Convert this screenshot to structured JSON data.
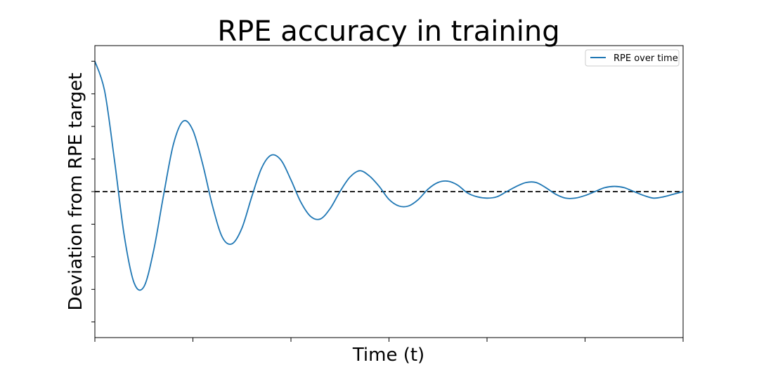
{
  "chart_data": {
    "type": "line",
    "title": "RPE accuracy in training",
    "xlabel": "Time (t)",
    "ylabel": "Deviation from RPE target",
    "xlim": [
      0,
      6
    ],
    "ylim": [
      -1.12,
      1.12
    ],
    "x_ticks": [
      0,
      1,
      2,
      3,
      4,
      5,
      6
    ],
    "y_ticks": [
      -1.0,
      -0.75,
      -0.5,
      -0.25,
      0.0,
      0.25,
      0.5,
      0.75,
      1.0
    ],
    "tick_labels_visible": false,
    "grid": false,
    "legend": {
      "placement": "top-right"
    },
    "series": [
      {
        "name": "RPE over time",
        "color": "#1f77b4",
        "x": [
          0,
          0.1,
          0.2,
          0.3,
          0.4,
          0.5,
          0.6,
          0.7,
          0.8,
          0.9,
          1.0,
          1.1,
          1.2,
          1.3,
          1.4,
          1.5,
          1.6,
          1.7,
          1.8,
          1.9,
          2.0,
          2.1,
          2.2,
          2.3,
          2.4,
          2.5,
          2.6,
          2.7,
          2.8,
          2.9,
          3.0,
          3.1,
          3.2,
          3.3,
          3.4,
          3.5,
          3.6,
          3.7,
          3.8,
          3.9,
          4.0,
          4.1,
          4.2,
          4.3,
          4.4,
          4.5,
          4.6,
          4.7,
          4.8,
          4.9,
          5.0,
          5.1,
          5.2,
          5.3,
          5.4,
          5.5,
          5.6,
          5.7,
          5.8,
          5.9,
          6.0
        ],
        "y": [
          1.0,
          0.77,
          0.24,
          -0.34,
          -0.7,
          -0.73,
          -0.45,
          -0.03,
          0.36,
          0.54,
          0.47,
          0.21,
          -0.11,
          -0.35,
          -0.4,
          -0.28,
          -0.04,
          0.18,
          0.28,
          0.24,
          0.09,
          -0.08,
          -0.19,
          -0.21,
          -0.13,
          0.0,
          0.11,
          0.16,
          0.12,
          0.04,
          -0.06,
          -0.11,
          -0.11,
          -0.06,
          0.02,
          0.07,
          0.08,
          0.05,
          -0.01,
          -0.04,
          -0.05,
          -0.04,
          0.0,
          0.04,
          0.07,
          0.07,
          0.03,
          -0.02,
          -0.05,
          -0.05,
          -0.03,
          0.0,
          0.03,
          0.04,
          0.03,
          0.0,
          -0.03,
          -0.05,
          -0.04,
          -0.02,
          0.0
        ]
      }
    ],
    "reference_line": {
      "y": 0,
      "style": "dashed",
      "color": "#000000"
    }
  }
}
